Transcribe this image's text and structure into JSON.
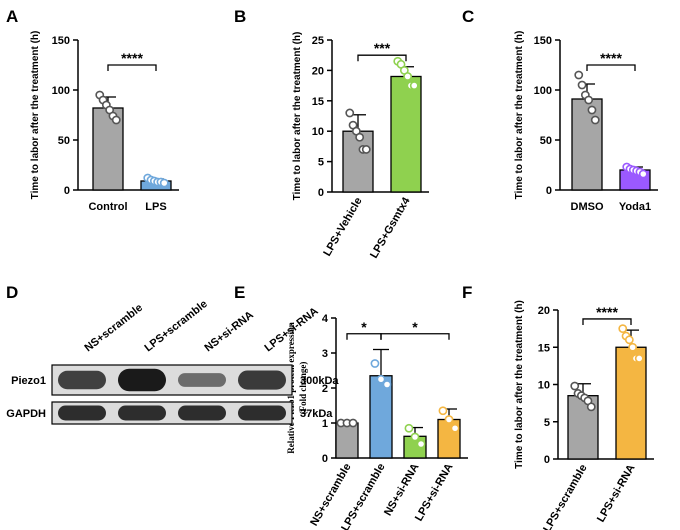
{
  "colors": {
    "gray": "#a6a6a6",
    "blue": "#6fa8dc",
    "green": "#8fd14f",
    "purple": "#9b59ff",
    "orange": "#f4b642",
    "blot_bg": "#dcdcdc",
    "band": "#1a1a1a"
  },
  "chart_data": [
    {
      "panel": "A",
      "type": "bar",
      "ylabel": "Time to  labor after the treatment (h)",
      "ylim": [
        0,
        150
      ],
      "yticks": [
        0,
        50,
        100,
        150
      ],
      "categories": [
        "Control",
        "LPS"
      ],
      "values": [
        82,
        9
      ],
      "errors": [
        11,
        2
      ],
      "bar_colors": [
        "gray",
        "blue"
      ],
      "points": [
        [
          95,
          90,
          85,
          80,
          74,
          70
        ],
        [
          12,
          10,
          9,
          8,
          8,
          7
        ]
      ],
      "significance": [
        {
          "from": 0,
          "to": 1,
          "label": "****",
          "y": 125
        }
      ]
    },
    {
      "panel": "B",
      "type": "bar",
      "ylabel": "Time to  labor after the treatment (h)",
      "ylim": [
        0,
        25
      ],
      "yticks": [
        0,
        5,
        10,
        15,
        20,
        25
      ],
      "categories": [
        "LPS+Vehicle",
        "LPS+Gsmtx4"
      ],
      "values": [
        10,
        19
      ],
      "errors": [
        2.7,
        1.6
      ],
      "bar_colors": [
        "gray",
        "green"
      ],
      "points": [
        [
          13,
          11,
          10,
          9,
          7,
          7
        ],
        [
          21.5,
          21,
          20,
          19,
          17.5,
          17.5
        ]
      ],
      "significance": [
        {
          "from": 0,
          "to": 1,
          "label": "***",
          "y": 22.5
        }
      ]
    },
    {
      "panel": "C",
      "type": "bar",
      "ylabel": "Time to  labor after the treatment (h)",
      "ylim": [
        0,
        150
      ],
      "yticks": [
        0,
        50,
        100,
        150
      ],
      "categories": [
        "DMSO",
        "Yoda1"
      ],
      "values": [
        91,
        20
      ],
      "errors": [
        15,
        3
      ],
      "bar_colors": [
        "gray",
        "purple"
      ],
      "points": [
        [
          115,
          105,
          95,
          90,
          80,
          70
        ],
        [
          23,
          21,
          20,
          19,
          18,
          16
        ]
      ],
      "significance": [
        {
          "from": 0,
          "to": 1,
          "label": "****",
          "y": 125
        }
      ]
    },
    {
      "panel": "E",
      "type": "bar",
      "ylabel": "Relative Piezo1 protein expression",
      "ylabel2": "(Fold change)",
      "ylim": [
        0,
        4
      ],
      "yticks": [
        0,
        1,
        2,
        3,
        4
      ],
      "categories": [
        "NS+scramble",
        "LPS+scramble",
        "NS+si-RNA",
        "LPS+si-RNA"
      ],
      "values": [
        1.0,
        2.35,
        0.62,
        1.1
      ],
      "errors": [
        0,
        0.75,
        0.25,
        0.3
      ],
      "bar_colors": [
        "gray",
        "blue",
        "green",
        "orange"
      ],
      "points": [
        [
          1.0,
          1.0,
          1.0
        ],
        [
          2.7,
          2.25,
          2.1
        ],
        [
          0.85,
          0.6,
          0.4
        ],
        [
          1.35,
          1.1,
          0.85
        ]
      ],
      "significance": [
        {
          "from": 0,
          "to": 1,
          "label": "*",
          "y": 3.55
        },
        {
          "from": 1,
          "to": 3,
          "label": "*",
          "y": 3.55
        }
      ]
    },
    {
      "panel": "F",
      "type": "bar",
      "ylabel": "Time to  labor after the treatment (h)",
      "ylim": [
        0,
        20
      ],
      "yticks": [
        0,
        5,
        10,
        15,
        20
      ],
      "categories": [
        "LPS+scramble",
        "LPS+si-RNA"
      ],
      "values": [
        8.5,
        15
      ],
      "errors": [
        1.6,
        2.3
      ],
      "bar_colors": [
        "gray",
        "orange"
      ],
      "points": [
        [
          9.8,
          8.8,
          8.5,
          8.2,
          7.8,
          7.0
        ],
        [
          17.5,
          16.5,
          16.0,
          15.0,
          13.5,
          13.5
        ]
      ],
      "significance": [
        {
          "from": 0,
          "to": 1,
          "label": "****",
          "y": 18.8
        }
      ]
    }
  ],
  "blot": {
    "panel": "D",
    "lanes": [
      "NS+scramble",
      "LPS+scramble",
      "NS+si-RNA",
      "LPS+si-RNA"
    ],
    "rows": [
      {
        "protein": "Piezo1",
        "size": "300kDa",
        "intensity": [
          0.7,
          1.0,
          0.35,
          0.75
        ]
      },
      {
        "protein": "GAPDH",
        "size": "37kDa",
        "intensity": [
          0.85,
          0.85,
          0.85,
          0.85
        ]
      }
    ]
  }
}
